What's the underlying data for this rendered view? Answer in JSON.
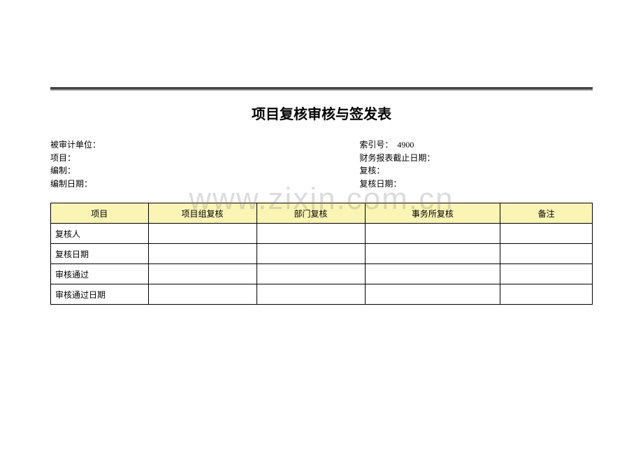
{
  "title": "项目复核审核与签发表",
  "meta": {
    "left": [
      {
        "label": "被审计单位：",
        "value": ""
      },
      {
        "label": "项目：",
        "value": ""
      },
      {
        "label": "编制：",
        "value": ""
      },
      {
        "label": "编制日期：",
        "value": ""
      }
    ],
    "right": [
      {
        "label": "索引号：  ",
        "value": "4900"
      },
      {
        "label": "财务报表截止日期：",
        "value": ""
      },
      {
        "label": "复核：",
        "value": ""
      },
      {
        "label": "复核日期：",
        "value": ""
      }
    ]
  },
  "table": {
    "headers": [
      "项目",
      "项目组复核",
      "部门复核",
      "事务所复核",
      "备注"
    ],
    "header_bg": "#fbf5b5",
    "rows": [
      [
        "复核人",
        "",
        "",
        "",
        ""
      ],
      [
        "复核日期",
        "",
        "",
        "",
        ""
      ],
      [
        "审核通过",
        "",
        "",
        "",
        ""
      ],
      [
        "审核通过日期",
        "",
        "",
        "",
        ""
      ]
    ]
  },
  "watermark": "www.zixin.com.cn"
}
